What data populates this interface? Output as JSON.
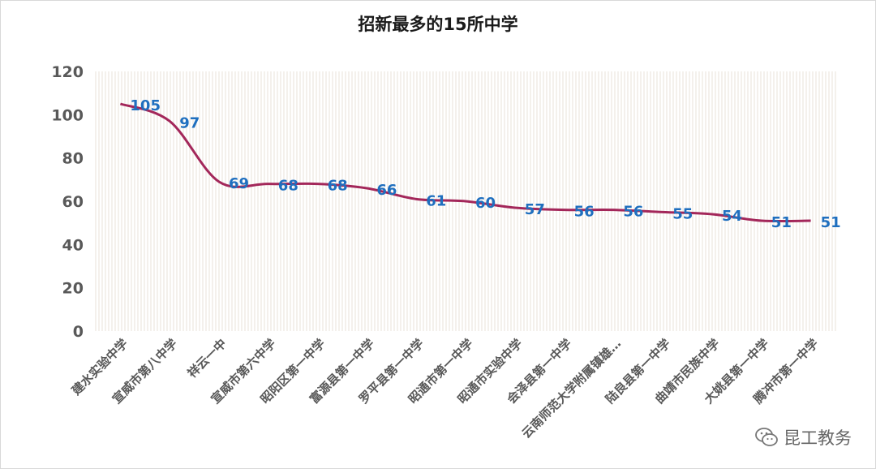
{
  "chart_data": {
    "type": "line",
    "title": "招新最多的15所中学",
    "categories": [
      "建水实验中学",
      "宣威市第八中学",
      "祥云一中",
      "宣威市第六中学",
      "昭阳区第一中学",
      "富源县第一中学",
      "罗平县第一中学",
      "昭通市第一中学",
      "昭通市实验中学",
      "会泽县第一中学",
      "云南师范大学附属镇雄…",
      "陆良县第一中学",
      "曲靖市民族中学",
      "大姚县第一中学",
      "腾冲市第一中学"
    ],
    "series": [
      {
        "values": [
          105,
          97,
          69,
          68,
          68,
          66,
          61,
          60,
          57,
          56,
          56,
          55,
          54,
          51,
          51
        ]
      }
    ],
    "ylim": [
      0,
      120
    ],
    "yticks": [
      0,
      20,
      40,
      60,
      80,
      100,
      120
    ],
    "xlabel": "",
    "ylabel": "",
    "grid": "vertical-hatch",
    "line_color": "#a3275a",
    "label_color": "#1f6fbf"
  },
  "watermark": {
    "text": "昆工教务",
    "icon": "wechat-icon"
  }
}
